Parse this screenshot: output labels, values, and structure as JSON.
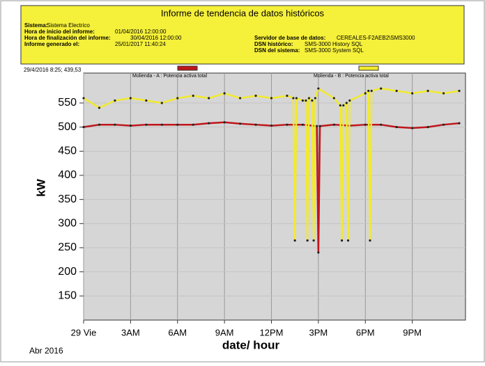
{
  "header": {
    "title": "Informe de tendencia de datos históricos",
    "left": [
      [
        "Sistema:",
        "Sistema Electrico"
      ],
      [
        "Hora de inicio del informe:",
        "01/04/2016 12:00:00"
      ],
      [
        "Hora de finalización del informe:",
        "30/04/2016 12:00:00"
      ],
      [
        "Informe generado el:",
        "25/01/2017 11:40:24"
      ]
    ],
    "right": [
      [
        "Servidor de base de datos:",
        "CEREALES-F2AEB2\\SMS3000"
      ],
      [
        "DSN histórico:",
        "SMS-3000 History SQL"
      ],
      [
        "DSN del sistema:",
        "SMS-3000 System SQL"
      ]
    ],
    "cursor": "29/4/2016 8:25; 439,53"
  },
  "chart_data": {
    "type": "line",
    "ylabel": "kW",
    "xlabel": "date/ hour",
    "xnote": "Abr 2016",
    "xlim": [
      0,
      24.4
    ],
    "ylim": [
      100,
      612
    ],
    "grid": true,
    "xticks": [
      {
        "value": 0,
        "label": "29 Vie"
      },
      {
        "value": 3,
        "label": "3AM"
      },
      {
        "value": 6,
        "label": "6AM"
      },
      {
        "value": 9,
        "label": "9AM"
      },
      {
        "value": 12,
        "label": "12PM"
      },
      {
        "value": 15,
        "label": "3PM"
      },
      {
        "value": 18,
        "label": "6PM"
      },
      {
        "value": 21,
        "label": "9PM"
      }
    ],
    "yticks": [
      150,
      200,
      250,
      300,
      350,
      400,
      450,
      500,
      550
    ],
    "series": [
      {
        "name": "Molienda - A : Potencia activa total",
        "color": "#c0151a",
        "x": [
          0,
          1,
          2,
          3,
          4,
          5,
          6,
          7,
          8,
          9,
          10,
          11,
          12,
          13,
          14,
          14.9,
          15,
          15.1,
          16,
          17,
          18,
          19,
          20,
          21,
          22,
          23,
          24
        ],
        "values": [
          500,
          505,
          505,
          503,
          505,
          505,
          505,
          505,
          508,
          510,
          507,
          505,
          503,
          505,
          505,
          502,
          240,
          502,
          505,
          503,
          505,
          505,
          500,
          498,
          500,
          505,
          508
        ]
      },
      {
        "name": "Molienda - B : Potencia activa total",
        "color": "#f2ea2c",
        "x": [
          0,
          1,
          2,
          3,
          4,
          5,
          6,
          7,
          8,
          9,
          10,
          11,
          12,
          13,
          13.4,
          13.5,
          13.6,
          14,
          14.2,
          14.3,
          14.4,
          14.6,
          14.7,
          14.8,
          15,
          16,
          16.4,
          16.5,
          16.6,
          16.8,
          16.9,
          17,
          18,
          18.2,
          18.3,
          18.4,
          19,
          20,
          21,
          22,
          23,
          24
        ],
        "values": [
          560,
          540,
          555,
          560,
          555,
          550,
          560,
          565,
          560,
          570,
          560,
          565,
          560,
          565,
          560,
          265,
          560,
          555,
          555,
          265,
          560,
          555,
          265,
          560,
          580,
          560,
          545,
          265,
          545,
          550,
          265,
          555,
          570,
          575,
          265,
          575,
          580,
          575,
          570,
          575,
          570,
          575
        ]
      }
    ]
  }
}
